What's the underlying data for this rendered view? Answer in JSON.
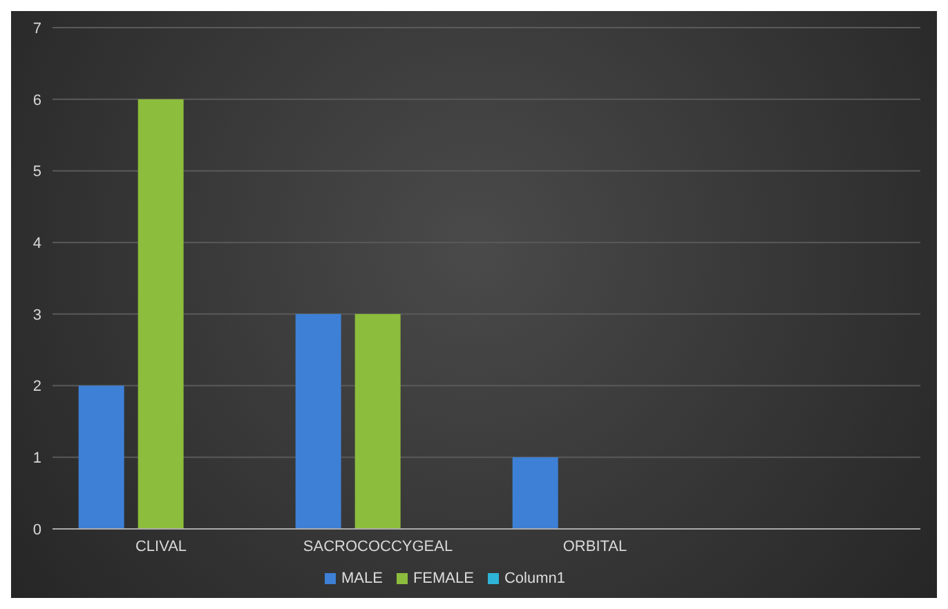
{
  "chart_data": {
    "type": "bar",
    "categories": [
      "CLIVAL",
      "SACROCOCCYGEAL",
      "ORBITAL",
      null
    ],
    "series": [
      {
        "name": "MALE",
        "color": "#3d80d6",
        "values": [
          2,
          3,
          1,
          null
        ]
      },
      {
        "name": "FEMALE",
        "color": "#8dbd3c",
        "values": [
          6,
          3,
          null,
          null
        ]
      },
      {
        "name": "Column1",
        "color": "#2eb4d6",
        "values": [
          null,
          null,
          null,
          null
        ]
      }
    ],
    "ylim": [
      0,
      7
    ],
    "yticks": [
      0,
      1,
      2,
      3,
      4,
      5,
      6,
      7
    ],
    "grid": "y",
    "legend": "bottom"
  }
}
